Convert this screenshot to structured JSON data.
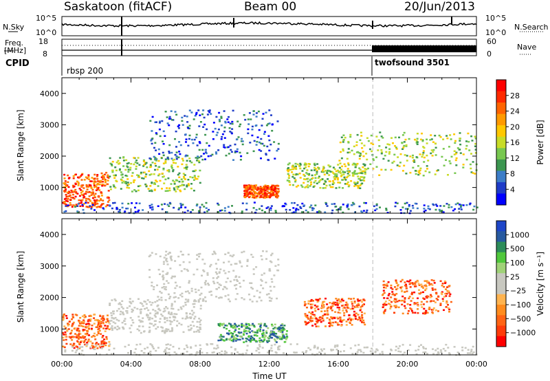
{
  "header": {
    "title": "Saskatoon (fitACF)",
    "beam": "Beam 00",
    "date": "20/Jun/2013"
  },
  "top_panels": {
    "nsky_label": "N.Sky",
    "nsearch_label": "N.Search",
    "nsky_ticks": [
      "10^5",
      "10^0"
    ],
    "nsky_ticks_right": [
      "10^5",
      "10^0"
    ],
    "freq_label_1": "Freq.",
    "freq_label_2": "[MHz]",
    "freq_ticks": [
      "18",
      "8"
    ],
    "nave_label": "Nave",
    "nave_ticks": [
      "60",
      "0"
    ],
    "cpid_label": "CPID",
    "cpid_segments": [
      {
        "name": "rbsp 200",
        "start_hour": 0,
        "end_hour": 18
      },
      {
        "name": "twofsound 3501",
        "start_hour": 18,
        "end_hour": 24
      }
    ]
  },
  "chart_data": [
    {
      "type": "heatmap",
      "panel": "power",
      "xlabel": "",
      "ylabel": "Slant Range [km]",
      "xlim": [
        0,
        24
      ],
      "ylim": [
        180,
        4500
      ],
      "y_ticks": [
        1000,
        2000,
        3000,
        4000
      ],
      "x_ticks": [
        "00:00",
        "04:00",
        "08:00",
        "12:00",
        "16:00",
        "20:00",
        "00:00"
      ],
      "colorbar": {
        "label": "Power [dB]",
        "ticks": [
          "28",
          "24",
          "20",
          "16",
          "12",
          "8",
          "4"
        ],
        "colors": [
          "#ff0000",
          "#ff2a00",
          "#ff6400",
          "#ff9a00",
          "#ffc800",
          "#c8dc28",
          "#78c850",
          "#3c9650",
          "#3c7dc8",
          "#1e3cc8",
          "#0000ff"
        ]
      },
      "echo_regions": [
        {
          "t0": 0.0,
          "t1": 2.7,
          "r0": 400,
          "r1": 1500,
          "level": "high"
        },
        {
          "t0": 2.7,
          "t1": 8.0,
          "r0": 900,
          "r1": 2000,
          "level": "mid"
        },
        {
          "t0": 5.0,
          "t1": 12.5,
          "r0": 1900,
          "r1": 3500,
          "level": "low"
        },
        {
          "t0": 10.5,
          "t1": 12.5,
          "r0": 700,
          "r1": 1100,
          "level": "high"
        },
        {
          "t0": 13.0,
          "t1": 17.5,
          "r0": 1000,
          "r1": 1800,
          "level": "mid"
        },
        {
          "t0": 16.0,
          "t1": 24.0,
          "r0": 1400,
          "r1": 2800,
          "level": "mid"
        },
        {
          "t0": 0.0,
          "t1": 24.0,
          "r0": 200,
          "r1": 550,
          "level": "low"
        }
      ]
    },
    {
      "type": "heatmap",
      "panel": "velocity",
      "xlabel": "Time UT",
      "ylabel": "Slant Range [km]",
      "xlim": [
        0,
        24
      ],
      "ylim": [
        180,
        4500
      ],
      "y_ticks": [
        1000,
        2000,
        3000,
        4000
      ],
      "x_ticks": [
        "00:00",
        "04:00",
        "08:00",
        "12:00",
        "16:00",
        "20:00",
        "00:00"
      ],
      "colorbar": {
        "label": "Velocity [m s⁻¹]",
        "ticks": [
          "1000",
          "500",
          "100",
          "25",
          "−25",
          "−100",
          "−500",
          "−1000"
        ],
        "colors": [
          "#1e46c8",
          "#285aa0",
          "#2d8c5a",
          "#50c83c",
          "#a0d278",
          "#c8c8c0",
          "#c8c8c0",
          "#ffb450",
          "#ff8c1e",
          "#ff6414",
          "#ff3c0a",
          "#ff0000"
        ]
      },
      "echo_regions": [
        {
          "t0": 0.0,
          "t1": 2.7,
          "r0": 400,
          "r1": 1500,
          "level": "neg"
        },
        {
          "t0": 2.7,
          "t1": 8.0,
          "r0": 900,
          "r1": 2000,
          "level": "zero"
        },
        {
          "t0": 5.0,
          "t1": 12.5,
          "r0": 1900,
          "r1": 3500,
          "level": "zero"
        },
        {
          "t0": 9.0,
          "t1": 13.0,
          "r0": 600,
          "r1": 1200,
          "level": "pos"
        },
        {
          "t0": 14.0,
          "t1": 17.5,
          "r0": 1100,
          "r1": 2000,
          "level": "neg"
        },
        {
          "t0": 18.5,
          "t1": 22.5,
          "r0": 1500,
          "r1": 2600,
          "level": "neg"
        },
        {
          "t0": 0.0,
          "t1": 24.0,
          "r0": 200,
          "r1": 550,
          "level": "zero"
        }
      ]
    }
  ]
}
